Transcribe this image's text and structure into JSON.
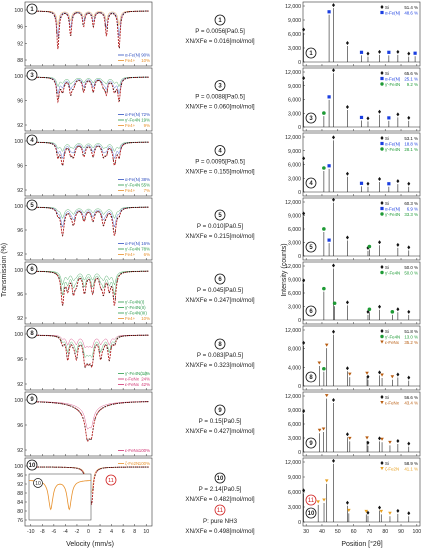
{
  "figure": {
    "left_ylabel": "Transmission (%)",
    "left_xlabel": "Velocity (mm/s)",
    "right_ylabel": "Intensity (counts)",
    "right_xlabel": "Position [°2θ]"
  },
  "chart_data": {
    "type": "figure",
    "mossbauer_xticks": [
      -10,
      -8,
      -6,
      -4,
      -2,
      0,
      2,
      4,
      6,
      8,
      10
    ],
    "xrd_xticks": [
      30,
      40,
      50,
      60,
      70,
      80,
      90,
      100
    ],
    "samples": [
      {
        "id": "1",
        "cond": "P = 0.0056[Pa0.5]",
        "ratio": "XN/XFe = 0.016[mol/mol]",
        "moss": {
          "yticks": [
            "100",
            "96",
            "92",
            "88"
          ],
          "ylim": [
            86,
            101
          ],
          "legend": [
            {
              "label": "α-Fe(N)",
              "value": "90%",
              "color": "#3050c0"
            },
            {
              "label": "Fe4+",
              "value": "10%",
              "color": "#e8902a"
            }
          ]
        },
        "xrd": {
          "yticks": [
            "12,000",
            "9,000",
            "6,000",
            "3,000",
            "0"
          ],
          "legend": [
            {
              "label": "Si",
              "value": "51.4 %",
              "color": "#111111",
              "shape": "diamond"
            },
            {
              "label": "α-Fe(N)",
              "value": "48.6 %",
              "color": "#1a3ee0",
              "shape": "square"
            }
          ],
          "peaks": [
            [
              28.4,
              6600,
              "Si"
            ],
            [
              44.5,
              10600,
              "aFe"
            ],
            [
              47.3,
              12100,
              "Si"
            ],
            [
              56.1,
              3600,
              "Si"
            ],
            [
              65.0,
              1500,
              "aFe"
            ],
            [
              69.1,
              1200,
              "Si"
            ],
            [
              76.4,
              1600,
              "Si"
            ],
            [
              82.3,
              1500,
              "aFe"
            ],
            [
              88.0,
              1600,
              "Si"
            ],
            [
              94.9,
              1200,
              "Si"
            ],
            [
              98.9,
              1300,
              "aFe"
            ]
          ]
        }
      },
      {
        "id": "3",
        "cond": "P = 0.0088[Pa0.5]",
        "ratio": "XN/XFe = 0.060[mol/mol]",
        "moss": {
          "yticks": [
            "100",
            "96",
            "92"
          ],
          "ylim": [
            90,
            101
          ],
          "legend": [
            {
              "label": "α-Fe(N)",
              "value": "72%",
              "color": "#3050c0"
            },
            {
              "label": "γ'-Fe4N",
              "value": "19%",
              "color": "#2a9a4a"
            },
            {
              "label": "Fe4+",
              "value": "9%",
              "color": "#e8902a"
            }
          ]
        },
        "xrd": {
          "yticks": [
            "12,000",
            "9,000",
            "6,000",
            "3,000",
            "0"
          ],
          "legend": [
            {
              "label": "Si",
              "value": "65.6 %",
              "color": "#111111",
              "shape": "diamond"
            },
            {
              "label": "α-Fe(N)",
              "value": "25.1 %",
              "color": "#1a3ee0",
              "shape": "square"
            },
            {
              "label": "γ'-Fe4N",
              "value": "9.2 %",
              "color": "#1e9a35",
              "shape": "circle"
            }
          ],
          "peaks": [
            [
              28.4,
              10500,
              "Si"
            ],
            [
              41.2,
              2500,
              "g"
            ],
            [
              44.5,
              6200,
              "aFe"
            ],
            [
              47.3,
              12300,
              "Si"
            ],
            [
              56.1,
              3900,
              "Si"
            ],
            [
              65.0,
              1500,
              "aFe"
            ],
            [
              69.1,
              1300,
              "Si"
            ],
            [
              76.4,
              2800,
              "Si"
            ],
            [
              82.3,
              1400,
              "aFe"
            ],
            [
              88.0,
              2200,
              "Si"
            ],
            [
              94.9,
              1400,
              "Si"
            ]
          ]
        }
      },
      {
        "id": "4",
        "cond": "P = 0.0095[Pa0.5]",
        "ratio": "XN/XFe = 0.155[mol/mol]",
        "moss": {
          "yticks": [
            "100",
            "96",
            "92"
          ],
          "ylim": [
            90,
            101
          ],
          "legend": [
            {
              "label": "α-Fe(N)",
              "value": "38%",
              "color": "#3050c0"
            },
            {
              "label": "γ'-Fe4N",
              "value": "55%",
              "color": "#2a9a4a"
            },
            {
              "label": "Fe4+",
              "value": "7%",
              "color": "#e8902a"
            }
          ]
        },
        "xrd": {
          "yticks": [
            "12,000",
            "9,000",
            "6,000",
            "3,000",
            "0"
          ],
          "legend": [
            {
              "label": "Si",
              "value": "53.1 %",
              "color": "#111111",
              "shape": "diamond"
            },
            {
              "label": "α-Fe(N)",
              "value": "18.8 %",
              "color": "#1a3ee0",
              "shape": "square"
            },
            {
              "label": "γ'-Fe4N",
              "value": "28.1 %",
              "color": "#1e9a35",
              "shape": "circle"
            }
          ],
          "peaks": [
            [
              28.4,
              7000,
              "Si"
            ],
            [
              41.2,
              4800,
              "g"
            ],
            [
              44.5,
              5300,
              "aFe"
            ],
            [
              47.3,
              11800,
              "Si"
            ],
            [
              56.1,
              3500,
              "Si"
            ],
            [
              65.0,
              1300,
              "aFe"
            ],
            [
              69.1,
              1200,
              "Si"
            ],
            [
              76.4,
              2300,
              "Si"
            ],
            [
              82.3,
              1200,
              "aFe"
            ],
            [
              88.0,
              1800,
              "Si"
            ],
            [
              94.9,
              1200,
              "Si"
            ]
          ]
        }
      },
      {
        "id": "5",
        "cond": "P = 0.010[Pa0.5]",
        "ratio": "XN/XFe = 0.215[mol/mol]",
        "moss": {
          "yticks": [
            "100",
            "96",
            "92"
          ],
          "ylim": [
            90,
            101
          ],
          "legend": [
            {
              "label": "α-Fe(N)",
              "value": "16%",
              "color": "#3050c0"
            },
            {
              "label": "γ'-Fe4N",
              "value": "78%",
              "color": "#2a9a4a"
            },
            {
              "label": "Fe4+",
              "value": "6%",
              "color": "#e8902a"
            }
          ]
        },
        "xrd": {
          "yticks": [
            "12,000",
            "9,000",
            "6,000",
            "3,000",
            "0"
          ],
          "legend": [
            {
              "label": "Si",
              "value": "60.3 %",
              "color": "#111111",
              "shape": "diamond"
            },
            {
              "label": "α-Fe(N)",
              "value": "6.9 %",
              "color": "#1a3ee0",
              "shape": "square"
            },
            {
              "label": "γ'-Fe4N",
              "value": "33.3 %",
              "color": "#1e9a35",
              "shape": "circle"
            }
          ],
          "peaks": [
            [
              28.4,
              9200,
              "Si"
            ],
            [
              41.2,
              5600,
              "g"
            ],
            [
              44.5,
              3000,
              "aFe"
            ],
            [
              47.3,
              12400,
              "Si"
            ],
            [
              56.1,
              3600,
              "Si"
            ],
            [
              69.1,
              1200,
              "Si"
            ],
            [
              70.0,
              1500,
              "g"
            ],
            [
              76.4,
              2500,
              "Si"
            ],
            [
              88.0,
              1900,
              "Si"
            ],
            [
              94.9,
              1300,
              "Si"
            ]
          ]
        }
      },
      {
        "id": "6",
        "cond": "P = 0.045[Pa0.5]",
        "ratio": "XN/XFe = 0.247[mol/mol]",
        "moss": {
          "yticks": [
            "100",
            "96",
            "92"
          ],
          "ylim": [
            89,
            101
          ],
          "legend": [
            {
              "label": "γ'-Fe4N(I)",
              "value": "",
              "color": "#2a9a4a"
            },
            {
              "label": "γ'-Fe4N(II)",
              "value": "",
              "color": "#2a9a4a"
            },
            {
              "label": "γ'-Fe4N(III)",
              "value": "",
              "color": "#2a9a4a"
            },
            {
              "label": "Fe4+",
              "value": "10%",
              "color": "#e8902a"
            }
          ]
        },
        "xrd": {
          "yticks": [
            "12,000",
            "9,000",
            "6,000",
            "3,000",
            "0"
          ],
          "legend": [
            {
              "label": "Si",
              "value": "50.0 %",
              "color": "#111111",
              "shape": "diamond"
            },
            {
              "label": "γ'-Fe4N",
              "value": "50.0 %",
              "color": "#1e9a35",
              "shape": "circle"
            }
          ],
          "peaks": [
            [
              28.4,
              8500,
              "Si"
            ],
            [
              41.2,
              6600,
              "g"
            ],
            [
              47.3,
              12000,
              "Si"
            ],
            [
              48.0,
              3200,
              "g"
            ],
            [
              56.1,
              3400,
              "Si"
            ],
            [
              69.1,
              1200,
              "Si"
            ],
            [
              70.0,
              1800,
              "g"
            ],
            [
              76.4,
              2400,
              "Si"
            ],
            [
              84.5,
              1200,
              "g"
            ],
            [
              88.0,
              1800,
              "Si"
            ],
            [
              94.9,
              1200,
              "Si"
            ]
          ]
        }
      },
      {
        "id": "8",
        "cond": "P = 0.083[Pa0.5]",
        "ratio": "XN/XFe = 0.323[mol/mol]",
        "moss": {
          "yticks": [
            "100",
            "96",
            "92"
          ],
          "ylim": [
            89,
            101
          ],
          "legend": [
            {
              "label": "γ'-Fe4N(...)",
              "value": "34%",
              "color": "#2a9a4a"
            },
            {
              "label": "ε-FeNx",
              "value": "24%",
              "color": "#d03070"
            },
            {
              "label": "ε-FeNx",
              "value": "42%",
              "color": "#d03070"
            }
          ]
        },
        "xrd": {
          "yticks": [
            "12,000",
            "8,000",
            "4,000",
            "0"
          ],
          "legend": [
            {
              "label": "Si",
              "value": "51.8 %",
              "color": "#111111",
              "shape": "diamond"
            },
            {
              "label": "γ'-Fe4N",
              "value": "13.0 %",
              "color": "#1e9a35",
              "shape": "circle"
            },
            {
              "label": "ε-FeNx",
              "value": "35.2 %",
              "color": "#b85c10",
              "shape": "triangle"
            }
          ],
          "peaks": [
            [
              28.4,
              9000,
              "Si"
            ],
            [
              38.3,
              4500,
              "e"
            ],
            [
              41.2,
              3200,
              "g"
            ],
            [
              43.0,
              8500,
              "e"
            ],
            [
              47.3,
              11500,
              "Si"
            ],
            [
              56.1,
              3300,
              "Si"
            ],
            [
              57.6,
              2000,
              "e"
            ],
            [
              69.1,
              1400,
              "Si"
            ],
            [
              68.5,
              2200,
              "e"
            ],
            [
              76.4,
              2400,
              "Si"
            ],
            [
              78.0,
              1800,
              "e"
            ],
            [
              88.0,
              1900,
              "Si"
            ],
            [
              84.5,
              1400,
              "e"
            ],
            [
              94.9,
              1200,
              "Si"
            ]
          ]
        }
      },
      {
        "id": "9",
        "cond": "P = 0.15[Pa0.5]",
        "ratio": "XN/XFe = 0.427[mol/mol]",
        "moss": {
          "yticks": [
            "100",
            "96",
            "92"
          ],
          "ylim": [
            89,
            101
          ],
          "legend": [
            {
              "label": "ε-FeNx",
              "value": "100%",
              "color": "#d03070"
            }
          ]
        },
        "xrd": {
          "yticks": [
            "12,000",
            "9,000",
            "6,000",
            "3,000",
            "0"
          ],
          "legend": [
            {
              "label": "Si",
              "value": "56.6 %",
              "color": "#111111",
              "shape": "diamond"
            },
            {
              "label": "ε-FeNx",
              "value": "43.4 %",
              "color": "#b85c10",
              "shape": "triangle"
            }
          ],
          "peaks": [
            [
              28.4,
              8500,
              "Si"
            ],
            [
              38.5,
              4200,
              "e"
            ],
            [
              41.0,
              4500,
              "e"
            ],
            [
              43.0,
              12000,
              "e"
            ],
            [
              47.3,
              11000,
              "Si"
            ],
            [
              56.1,
              3300,
              "Si"
            ],
            [
              57.6,
              2400,
              "e"
            ],
            [
              68.5,
              2500,
              "e"
            ],
            [
              69.1,
              1400,
              "Si"
            ],
            [
              76.4,
              2400,
              "Si"
            ],
            [
              78.0,
              2200,
              "e"
            ],
            [
              83.0,
              1500,
              "e"
            ],
            [
              88.0,
              1800,
              "Si"
            ],
            [
              94.9,
              1200,
              "Si"
            ]
          ]
        }
      },
      {
        "id": "10",
        "cond": "P = 2.14[Pa0.5]",
        "ratio": "XN/XFe = 0.482[mol/mol]",
        "alt_id": "11",
        "alt_cond": "P: pure NH3",
        "alt_ratio": "XN/XFe = 0.498[mol/mol]",
        "moss": {
          "yticks": [
            "100",
            "96",
            "92",
            "88",
            "84",
            "80",
            "76"
          ],
          "ylim": [
            75,
            101
          ],
          "legend": [
            {
              "label": "ζ-Fe2N",
              "value": "100%",
              "color": "#e8902a"
            }
          ]
        },
        "xrd": {
          "yticks": [
            "12,000",
            "9,000",
            "6,000",
            "3,000",
            "0"
          ],
          "legend": [
            {
              "label": "Si",
              "value": "58.9 %",
              "color": "#111111",
              "shape": "diamond"
            },
            {
              "label": "ζ-Fe2N",
              "value": "41.1 %",
              "color": "#e8a020",
              "shape": "triangle"
            }
          ],
          "peaks": [
            [
              28.4,
              6000,
              "Si"
            ],
            [
              37.6,
              3600,
              "z"
            ],
            [
              41.3,
              4000,
              "z"
            ],
            [
              43.0,
              8000,
              "z"
            ],
            [
              47.3,
              12200,
              "Si"
            ],
            [
              56.1,
              3400,
              "Si"
            ],
            [
              57.0,
              1800,
              "z"
            ],
            [
              68.0,
              1600,
              "z"
            ],
            [
              69.1,
              1300,
              "Si"
            ],
            [
              76.4,
              2400,
              "Si"
            ],
            [
              77.5,
              1600,
              "z"
            ],
            [
              83.0,
              1200,
              "z"
            ],
            [
              88.0,
              1700,
              "Si"
            ],
            [
              94.9,
              1200,
              "Si"
            ]
          ]
        }
      }
    ]
  }
}
